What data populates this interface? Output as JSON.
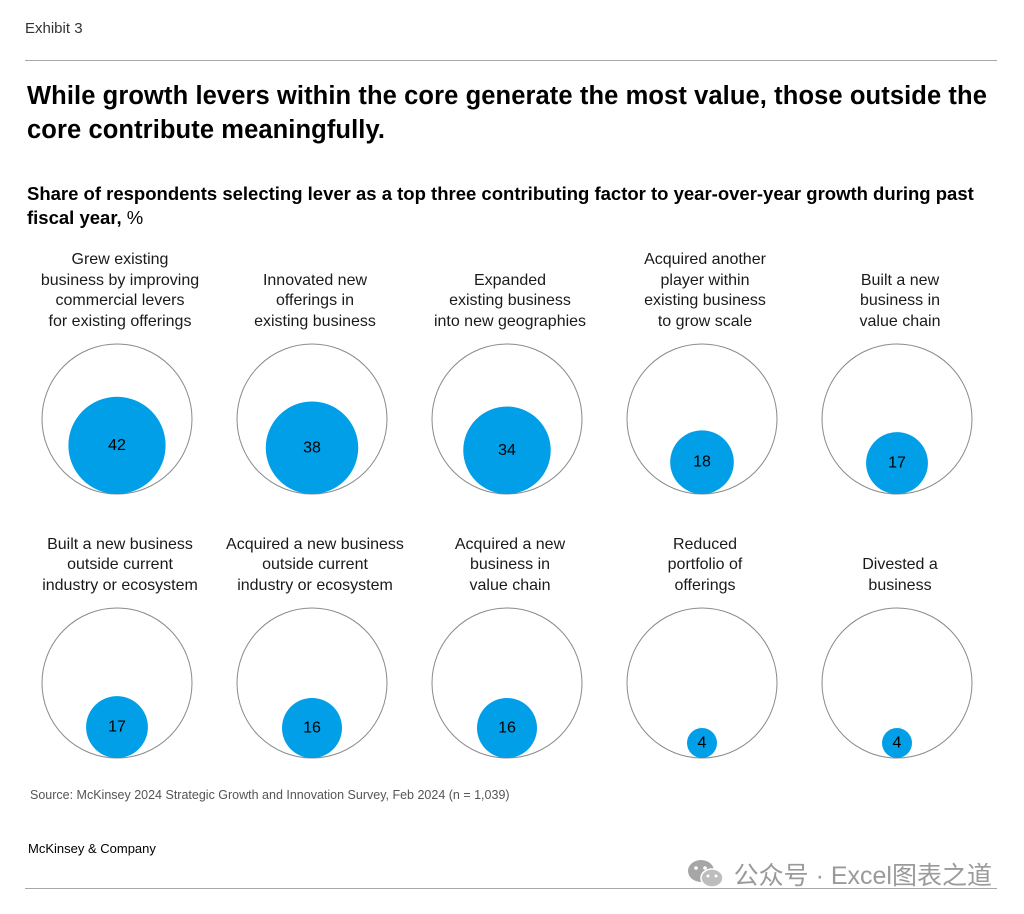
{
  "exhibit_label": "Exhibit 3",
  "headline": "While growth levers within the core generate the most value, those outside the core contribute meaningfully.",
  "subtitle": {
    "main": "Share of respondents selecting lever as a top three contributing factor to year-over-year growth during past fiscal year,",
    "unit": "%"
  },
  "colors": {
    "bubble_fill": "#009fe8",
    "outline": "#8a8a8a",
    "text": "#000000"
  },
  "chart_data": {
    "type": "bubble",
    "title": "Share of respondents selecting lever as a top three contributing factor to year-over-year growth during past fiscal year, %",
    "unit": "%",
    "max_value": 100,
    "items": [
      {
        "label": [
          "Grew existing",
          "business by improving",
          "commercial levers",
          "for existing offerings"
        ],
        "value": 42
      },
      {
        "label": [
          "Innovated new",
          "offerings in",
          "existing business"
        ],
        "value": 38
      },
      {
        "label": [
          "Expanded",
          "existing business",
          "into new geographies"
        ],
        "value": 34
      },
      {
        "label": [
          "Acquired another",
          "player within",
          "existing business",
          "to grow scale"
        ],
        "value": 18
      },
      {
        "label": [
          "Built a new",
          "business in",
          "value chain"
        ],
        "value": 17
      },
      {
        "label": [
          "Built a new business",
          "outside current",
          "industry or ecosystem"
        ],
        "value": 17
      },
      {
        "label": [
          "Acquired a new business",
          "outside current",
          "industry or ecosystem"
        ],
        "value": 16
      },
      {
        "label": [
          "Acquired a new",
          "business in",
          "value chain"
        ],
        "value": 16
      },
      {
        "label": [
          "Reduced",
          "portfolio of",
          "offerings"
        ],
        "value": 4
      },
      {
        "label": [
          "Divested a",
          "business"
        ],
        "value": 4
      }
    ]
  },
  "source": "Source: McKinsey 2024 Strategic Growth and Innovation Survey, Feb 2024 (n = 1,039)",
  "company": "McKinsey & Company",
  "watermark": {
    "icon": "wechat-icon",
    "text": "公众号 · Excel图表之道"
  }
}
